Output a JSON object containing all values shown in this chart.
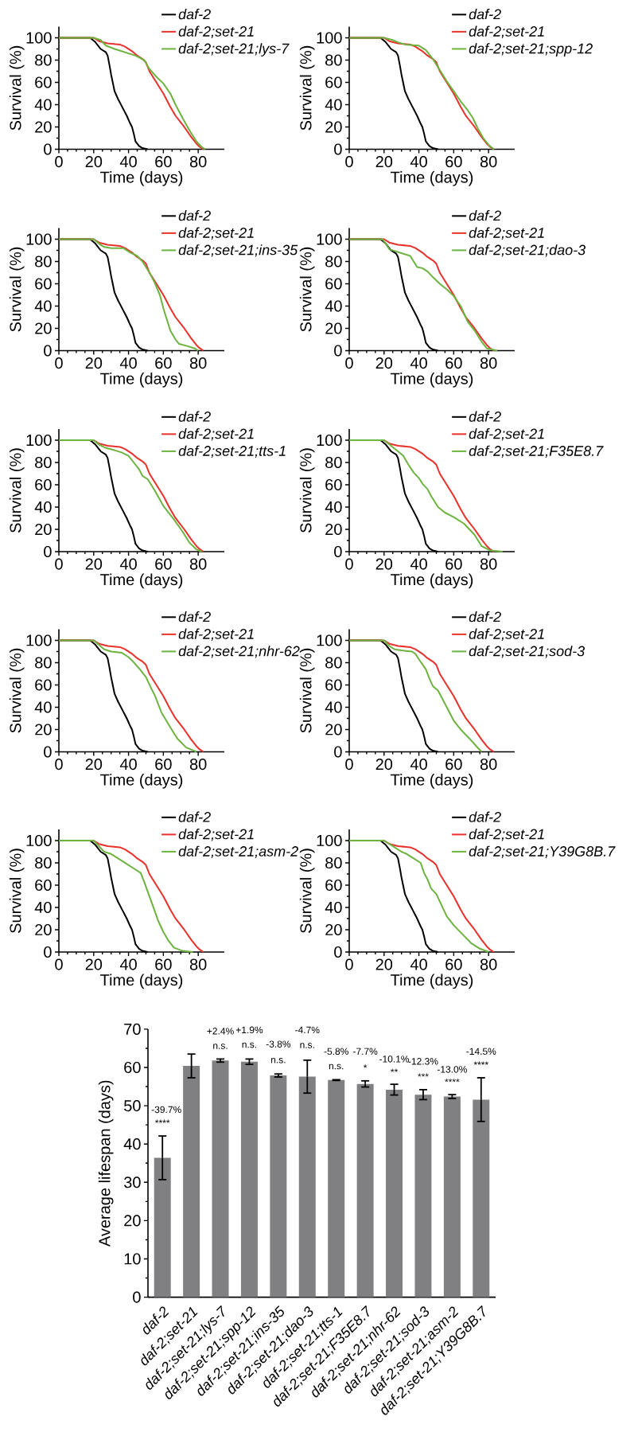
{
  "chart_data": [
    {
      "type": "line",
      "xlabel": "Time (days)",
      "ylabel": "Survival (%)",
      "xlim": [
        0,
        95
      ],
      "ylim": [
        0,
        110
      ],
      "xticks": [
        0,
        20,
        40,
        60,
        80
      ],
      "yticks": [
        0,
        20,
        40,
        60,
        80,
        100
      ],
      "legend": "top right",
      "series": [
        {
          "name": "daf-2",
          "color": "#000000",
          "x": [
            0,
            18,
            21,
            24,
            27,
            28,
            29,
            30,
            32,
            34,
            36,
            39,
            41,
            42,
            43,
            44,
            46,
            48,
            51
          ],
          "values": [
            100,
            100,
            96,
            90,
            87,
            84,
            76,
            67,
            52,
            45,
            39,
            30,
            23,
            20,
            14,
            7,
            3,
            1,
            0
          ]
        },
        {
          "name": "daf-2;set-21",
          "color": "#e8312a",
          "x": [
            0,
            20,
            23,
            28,
            35,
            38,
            42,
            45,
            48,
            50,
            52,
            56,
            60,
            64,
            67,
            72,
            76,
            79,
            81,
            83
          ],
          "values": [
            100,
            100,
            97,
            95,
            94,
            92,
            88,
            84,
            81,
            78,
            70,
            60,
            50,
            38,
            30,
            20,
            11,
            5,
            2,
            0
          ]
        },
        {
          "name": "daf-2;set-21;lys-7",
          "color": "#6cb33f",
          "x": [
            0,
            20,
            24,
            27,
            32,
            38,
            44,
            49,
            52,
            56,
            60,
            64,
            67,
            71,
            75,
            79,
            82,
            84
          ],
          "values": [
            100,
            100,
            98,
            93,
            90,
            87,
            84,
            80,
            72,
            65,
            59,
            50,
            40,
            28,
            17,
            7,
            2,
            0
          ]
        }
      ]
    },
    {
      "type": "line",
      "xlabel": "Time (days)",
      "ylabel": "Survival (%)",
      "xlim": [
        0,
        95
      ],
      "ylim": [
        0,
        110
      ],
      "xticks": [
        0,
        20,
        40,
        60,
        80
      ],
      "yticks": [
        0,
        20,
        40,
        60,
        80,
        100
      ],
      "legend": "top right",
      "series": [
        {
          "name": "daf-2",
          "color": "#000000",
          "x": [
            0,
            18,
            21,
            24,
            27,
            28,
            29,
            30,
            32,
            34,
            36,
            39,
            41,
            42,
            43,
            44,
            46,
            48,
            51
          ],
          "values": [
            100,
            100,
            96,
            90,
            87,
            84,
            76,
            67,
            52,
            45,
            39,
            30,
            23,
            20,
            14,
            7,
            3,
            1,
            0
          ]
        },
        {
          "name": "daf-2;set-21",
          "color": "#e8312a",
          "x": [
            0,
            20,
            23,
            28,
            35,
            38,
            42,
            45,
            48,
            50,
            52,
            56,
            60,
            64,
            67,
            72,
            76,
            79,
            81,
            83
          ],
          "values": [
            100,
            100,
            97,
            95,
            94,
            92,
            88,
            84,
            81,
            78,
            70,
            60,
            50,
            38,
            30,
            20,
            11,
            5,
            2,
            0
          ]
        },
        {
          "name": "daf-2;set-21;spp-12",
          "color": "#6cb33f",
          "x": [
            0,
            20,
            25,
            28,
            32,
            40,
            44,
            48,
            52,
            56,
            60,
            64,
            68,
            71,
            74,
            77,
            80,
            83
          ],
          "values": [
            100,
            100,
            98,
            96,
            94,
            93,
            89,
            81,
            71,
            61,
            52,
            43,
            35,
            28,
            18,
            10,
            4,
            0
          ]
        }
      ]
    },
    {
      "type": "line",
      "xlabel": "Time (days)",
      "ylabel": "Survival (%)",
      "xlim": [
        0,
        95
      ],
      "ylim": [
        0,
        110
      ],
      "xticks": [
        0,
        20,
        40,
        60,
        80
      ],
      "yticks": [
        0,
        20,
        40,
        60,
        80,
        100
      ],
      "legend": "top right",
      "series": [
        {
          "name": "daf-2",
          "color": "#000000",
          "x": [
            0,
            18,
            21,
            24,
            27,
            28,
            29,
            30,
            32,
            34,
            36,
            39,
            41,
            42,
            43,
            44,
            46,
            48,
            51
          ],
          "values": [
            100,
            100,
            96,
            90,
            87,
            84,
            76,
            67,
            52,
            45,
            39,
            30,
            23,
            20,
            14,
            7,
            3,
            1,
            0
          ]
        },
        {
          "name": "daf-2;set-21",
          "color": "#e8312a",
          "x": [
            0,
            20,
            23,
            28,
            35,
            38,
            42,
            45,
            48,
            50,
            52,
            56,
            60,
            64,
            67,
            72,
            76,
            79,
            81,
            83
          ],
          "values": [
            100,
            100,
            97,
            95,
            94,
            92,
            88,
            84,
            81,
            78,
            70,
            60,
            50,
            38,
            30,
            20,
            11,
            5,
            2,
            0
          ]
        },
        {
          "name": "daf-2;set-21;ins-35",
          "color": "#6cb33f",
          "x": [
            0,
            20,
            23,
            26,
            30,
            37,
            41,
            45,
            48,
            52,
            55,
            58,
            60,
            62,
            64,
            67,
            69,
            74,
            78,
            80
          ],
          "values": [
            100,
            100,
            96,
            93,
            92,
            92,
            88,
            85,
            80,
            70,
            61,
            50,
            38,
            28,
            18,
            10,
            6,
            4,
            2,
            0
          ]
        }
      ]
    },
    {
      "type": "line",
      "xlabel": "Time (days)",
      "ylabel": "Survival (%)",
      "xlim": [
        0,
        95
      ],
      "ylim": [
        0,
        110
      ],
      "xticks": [
        0,
        20,
        40,
        60,
        80
      ],
      "yticks": [
        0,
        20,
        40,
        60,
        80,
        100
      ],
      "legend": "top right",
      "series": [
        {
          "name": "daf-2",
          "color": "#000000",
          "x": [
            0,
            18,
            21,
            24,
            27,
            28,
            29,
            30,
            32,
            34,
            36,
            39,
            41,
            42,
            43,
            44,
            46,
            48,
            51
          ],
          "values": [
            100,
            100,
            96,
            90,
            87,
            84,
            76,
            67,
            52,
            45,
            39,
            30,
            23,
            20,
            14,
            7,
            3,
            1,
            0
          ]
        },
        {
          "name": "daf-2;set-21",
          "color": "#e8312a",
          "x": [
            0,
            20,
            23,
            28,
            35,
            38,
            42,
            45,
            48,
            50,
            52,
            56,
            60,
            64,
            67,
            72,
            76,
            79,
            81,
            83
          ],
          "values": [
            100,
            100,
            97,
            95,
            94,
            92,
            88,
            84,
            81,
            78,
            70,
            60,
            50,
            38,
            30,
            20,
            11,
            5,
            2,
            0
          ]
        },
        {
          "name": "daf-2;set-21;dao-3",
          "color": "#6cb33f",
          "x": [
            0,
            19,
            21,
            23,
            27,
            31,
            35,
            37,
            39,
            42,
            45,
            48,
            52,
            56,
            60,
            64,
            68,
            72,
            76,
            79,
            82,
            85
          ],
          "values": [
            100,
            100,
            96,
            91,
            89,
            87,
            85,
            80,
            75,
            74,
            71,
            66,
            60,
            55,
            49,
            40,
            26,
            18,
            8,
            2,
            1,
            0
          ]
        }
      ]
    },
    {
      "type": "line",
      "xlabel": "Time (days)",
      "ylabel": "Survival (%)",
      "xlim": [
        0,
        95
      ],
      "ylim": [
        0,
        110
      ],
      "xticks": [
        0,
        20,
        40,
        60,
        80
      ],
      "yticks": [
        0,
        20,
        40,
        60,
        80,
        100
      ],
      "legend": "top right",
      "series": [
        {
          "name": "daf-2",
          "color": "#000000",
          "x": [
            0,
            18,
            21,
            24,
            27,
            28,
            29,
            30,
            32,
            34,
            36,
            39,
            41,
            42,
            43,
            44,
            46,
            48,
            51
          ],
          "values": [
            100,
            100,
            96,
            90,
            87,
            84,
            76,
            67,
            52,
            45,
            39,
            30,
            23,
            20,
            14,
            7,
            3,
            1,
            0
          ]
        },
        {
          "name": "daf-2;set-21",
          "color": "#e8312a",
          "x": [
            0,
            20,
            23,
            28,
            35,
            38,
            42,
            45,
            48,
            50,
            52,
            56,
            60,
            64,
            67,
            72,
            76,
            79,
            81,
            83
          ],
          "values": [
            100,
            100,
            97,
            95,
            94,
            92,
            88,
            84,
            81,
            78,
            70,
            60,
            50,
            38,
            30,
            20,
            11,
            5,
            2,
            0
          ]
        },
        {
          "name": "daf-2;set-21;tts-1",
          "color": "#6cb33f",
          "x": [
            0,
            20,
            23,
            27,
            32,
            36,
            40,
            43,
            46,
            48,
            51,
            55,
            60,
            66,
            71,
            75,
            79,
            82
          ],
          "values": [
            100,
            100,
            96,
            93,
            91,
            89,
            86,
            80,
            74,
            68,
            65,
            55,
            41,
            29,
            18,
            8,
            2,
            0
          ]
        }
      ]
    },
    {
      "type": "line",
      "xlabel": "Time (days)",
      "ylabel": "Survival (%)",
      "xlim": [
        0,
        95
      ],
      "ylim": [
        0,
        110
      ],
      "xticks": [
        0,
        20,
        40,
        60,
        80
      ],
      "yticks": [
        0,
        20,
        40,
        60,
        80,
        100
      ],
      "legend": "top right",
      "series": [
        {
          "name": "daf-2",
          "color": "#000000",
          "x": [
            0,
            18,
            21,
            24,
            27,
            28,
            29,
            30,
            32,
            34,
            36,
            39,
            41,
            42,
            43,
            44,
            46,
            48,
            51
          ],
          "values": [
            100,
            100,
            96,
            90,
            87,
            84,
            76,
            67,
            52,
            45,
            39,
            30,
            23,
            20,
            14,
            7,
            3,
            1,
            0
          ]
        },
        {
          "name": "daf-2;set-21",
          "color": "#e8312a",
          "x": [
            0,
            20,
            23,
            28,
            35,
            38,
            42,
            45,
            48,
            50,
            52,
            56,
            60,
            64,
            67,
            72,
            76,
            79,
            81,
            83
          ],
          "values": [
            100,
            100,
            97,
            95,
            94,
            92,
            88,
            84,
            81,
            78,
            70,
            60,
            50,
            38,
            30,
            20,
            11,
            5,
            2,
            0
          ]
        },
        {
          "name": "daf-2;set-21;F35E8.7",
          "color": "#6cb33f",
          "x": [
            0,
            20,
            24,
            28,
            31,
            34,
            37,
            40,
            42,
            45,
            47,
            51,
            55,
            60,
            66,
            72,
            76,
            81,
            88
          ],
          "values": [
            100,
            100,
            95,
            90,
            86,
            78,
            71,
            66,
            61,
            56,
            50,
            40,
            35,
            31,
            25,
            15,
            5,
            1,
            0
          ]
        }
      ]
    },
    {
      "type": "line",
      "xlabel": "Time (days)",
      "ylabel": "Survival (%)",
      "xlim": [
        0,
        95
      ],
      "ylim": [
        0,
        110
      ],
      "xticks": [
        0,
        20,
        40,
        60,
        80
      ],
      "yticks": [
        0,
        20,
        40,
        60,
        80,
        100
      ],
      "legend": "top right",
      "series": [
        {
          "name": "daf-2",
          "color": "#000000",
          "x": [
            0,
            18,
            21,
            24,
            27,
            28,
            29,
            30,
            32,
            34,
            36,
            39,
            41,
            42,
            43,
            44,
            46,
            48,
            51
          ],
          "values": [
            100,
            100,
            96,
            90,
            87,
            84,
            76,
            67,
            52,
            45,
            39,
            30,
            23,
            20,
            14,
            7,
            3,
            1,
            0
          ]
        },
        {
          "name": "daf-2;set-21",
          "color": "#e8312a",
          "x": [
            0,
            20,
            23,
            28,
            35,
            38,
            42,
            45,
            48,
            50,
            52,
            56,
            60,
            64,
            67,
            72,
            76,
            79,
            81,
            83
          ],
          "values": [
            100,
            100,
            97,
            95,
            94,
            92,
            88,
            84,
            81,
            78,
            70,
            60,
            50,
            38,
            30,
            20,
            11,
            5,
            2,
            0
          ]
        },
        {
          "name": "daf-2;set-21;nhr-62",
          "color": "#6cb33f",
          "x": [
            0,
            20,
            23,
            26,
            30,
            36,
            40,
            42,
            46,
            50,
            53,
            55,
            59,
            64,
            68,
            73,
            76,
            79
          ],
          "values": [
            100,
            100,
            96,
            92,
            90,
            89,
            85,
            82,
            75,
            67,
            57,
            51,
            35,
            22,
            12,
            4,
            2,
            0
          ]
        }
      ]
    },
    {
      "type": "line",
      "xlabel": "Time (days)",
      "ylabel": "Survival (%)",
      "xlim": [
        0,
        95
      ],
      "ylim": [
        0,
        110
      ],
      "xticks": [
        0,
        20,
        40,
        60,
        80
      ],
      "yticks": [
        0,
        20,
        40,
        60,
        80,
        100
      ],
      "legend": "top right",
      "series": [
        {
          "name": "daf-2",
          "color": "#000000",
          "x": [
            0,
            18,
            21,
            24,
            27,
            28,
            29,
            30,
            32,
            34,
            36,
            39,
            41,
            42,
            43,
            44,
            46,
            48,
            51
          ],
          "values": [
            100,
            100,
            96,
            90,
            87,
            84,
            76,
            67,
            52,
            45,
            39,
            30,
            23,
            20,
            14,
            7,
            3,
            1,
            0
          ]
        },
        {
          "name": "daf-2;set-21",
          "color": "#e8312a",
          "x": [
            0,
            20,
            23,
            28,
            35,
            38,
            42,
            45,
            48,
            50,
            52,
            56,
            60,
            64,
            67,
            72,
            76,
            79,
            81,
            83
          ],
          "values": [
            100,
            100,
            97,
            95,
            94,
            92,
            88,
            84,
            81,
            78,
            70,
            60,
            50,
            38,
            30,
            20,
            11,
            5,
            2,
            0
          ]
        },
        {
          "name": "daf-2;set-21;sod-3",
          "color": "#6cb33f",
          "x": [
            0,
            20,
            23,
            26,
            30,
            36,
            38,
            40,
            44,
            46,
            48,
            51,
            55,
            60,
            64,
            69,
            73,
            76
          ],
          "values": [
            100,
            100,
            95,
            92,
            91,
            90,
            88,
            83,
            74,
            66,
            59,
            55,
            43,
            28,
            20,
            12,
            5,
            0
          ]
        }
      ]
    },
    {
      "type": "line",
      "xlabel": "Time (days)",
      "ylabel": "Survival (%)",
      "xlim": [
        0,
        95
      ],
      "ylim": [
        0,
        110
      ],
      "xticks": [
        0,
        20,
        40,
        60,
        80
      ],
      "yticks": [
        0,
        20,
        40,
        60,
        80,
        100
      ],
      "legend": "top right",
      "series": [
        {
          "name": "daf-2",
          "color": "#000000",
          "x": [
            0,
            18,
            21,
            24,
            27,
            28,
            29,
            30,
            32,
            34,
            36,
            39,
            41,
            42,
            43,
            44,
            46,
            48,
            51
          ],
          "values": [
            100,
            100,
            96,
            90,
            87,
            84,
            76,
            67,
            52,
            45,
            39,
            30,
            23,
            20,
            14,
            7,
            3,
            1,
            0
          ]
        },
        {
          "name": "daf-2;set-21",
          "color": "#e8312a",
          "x": [
            0,
            20,
            23,
            28,
            35,
            38,
            42,
            45,
            48,
            50,
            52,
            56,
            60,
            64,
            67,
            72,
            76,
            79,
            81,
            83
          ],
          "values": [
            100,
            100,
            97,
            95,
            94,
            92,
            88,
            84,
            81,
            78,
            70,
            60,
            50,
            38,
            30,
            20,
            11,
            5,
            2,
            0
          ]
        },
        {
          "name": "daf-2;set-21;asm-2",
          "color": "#6cb33f",
          "x": [
            0,
            20,
            23,
            26,
            30,
            34,
            39,
            43,
            47,
            49,
            52,
            55,
            57,
            60,
            63,
            66,
            71,
            77
          ],
          "values": [
            100,
            100,
            95,
            90,
            88,
            84,
            79,
            75,
            71,
            63,
            50,
            37,
            28,
            18,
            10,
            4,
            1,
            0
          ]
        }
      ]
    },
    {
      "type": "line",
      "xlabel": "Time (days)",
      "ylabel": "Survival (%)",
      "xlim": [
        0,
        95
      ],
      "ylim": [
        0,
        110
      ],
      "xticks": [
        0,
        20,
        40,
        60,
        80
      ],
      "yticks": [
        0,
        20,
        40,
        60,
        80,
        100
      ],
      "legend": "top right",
      "series": [
        {
          "name": "daf-2",
          "color": "#000000",
          "x": [
            0,
            18,
            21,
            24,
            27,
            28,
            29,
            30,
            32,
            34,
            36,
            39,
            41,
            42,
            43,
            44,
            46,
            48,
            51
          ],
          "values": [
            100,
            100,
            96,
            90,
            87,
            84,
            76,
            67,
            52,
            45,
            39,
            30,
            23,
            20,
            14,
            7,
            3,
            1,
            0
          ]
        },
        {
          "name": "daf-2;set-21",
          "color": "#e8312a",
          "x": [
            0,
            20,
            23,
            28,
            35,
            38,
            42,
            45,
            48,
            50,
            52,
            56,
            60,
            64,
            67,
            72,
            76,
            79,
            81,
            83
          ],
          "values": [
            100,
            100,
            97,
            95,
            94,
            92,
            88,
            84,
            81,
            78,
            70,
            60,
            50,
            38,
            30,
            20,
            11,
            5,
            2,
            0
          ]
        },
        {
          "name": "daf-2;set-21;Y39G8B.7",
          "color": "#6cb33f",
          "x": [
            0,
            20,
            23,
            26,
            30,
            33,
            37,
            41,
            43,
            45,
            47,
            50,
            53,
            56,
            60,
            65,
            70,
            75,
            80
          ],
          "values": [
            100,
            100,
            97,
            94,
            90,
            88,
            84,
            80,
            71,
            65,
            57,
            52,
            42,
            32,
            24,
            16,
            8,
            3,
            0
          ]
        }
      ]
    },
    {
      "type": "bar",
      "ylabel": "Average lifespan (days)",
      "color": "#808083",
      "ylim": [
        0,
        70
      ],
      "yticks": [
        0,
        10,
        20,
        30,
        40,
        50,
        60,
        70
      ],
      "categories": [
        "daf-2",
        "daf-2;set-21",
        "daf-2;set-21;lys-7",
        "daf-2;set-21;spp-12",
        "daf-2;set-21;ins-35",
        "daf-2;set-21;dao-3",
        "daf-2;set-21;tts-1",
        "daf-2;set-21;F35E8.7",
        "daf-2;set-21;nhr-62",
        "daf-2;set-21;sod-3",
        "daf-2;set-21;asm-2",
        "daf-2;set-21;Y39G8B.7"
      ],
      "values": [
        36.4,
        60.4,
        61.8,
        61.5,
        57.9,
        57.6,
        56.7,
        55.7,
        54.2,
        52.9,
        52.4,
        51.6
      ],
      "errors": [
        5.7,
        3.1,
        0.4,
        0.7,
        0.4,
        4.3,
        0.1,
        0.8,
        1.4,
        1.3,
        0.5,
        5.7
      ],
      "annotations": [
        "-39.7%",
        "****",
        "+2.4%",
        "n.s.",
        "+1.9%",
        "n.s.",
        "-3.8%",
        "n.s.",
        "-4.7%",
        "n.s.",
        "-5.8%",
        "n.s.",
        "-7.7%",
        "*",
        "-10.1%",
        "**",
        "-12.3%",
        "***",
        "-13.0%",
        "****",
        "-14.5%",
        "****"
      ]
    }
  ]
}
